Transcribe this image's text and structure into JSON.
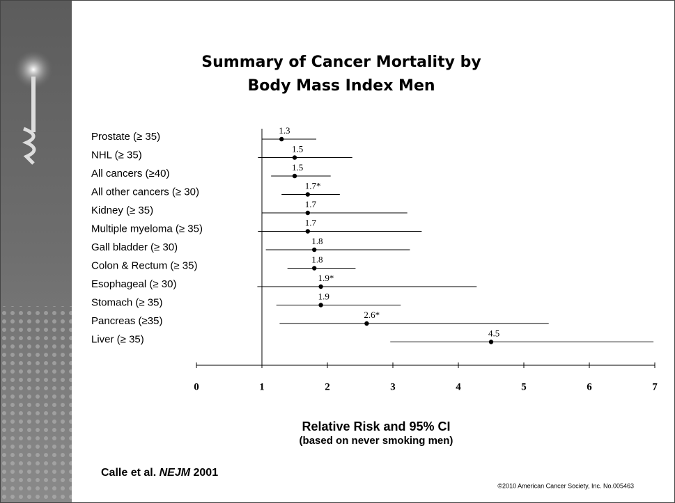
{
  "chart_data": {
    "type": "forest",
    "title": [
      "Summary of Cancer Mortality by",
      "Body Mass Index Men"
    ],
    "categories": [
      "Prostate  (≥ 35)",
      "NHL  (≥ 35)",
      "All cancers (≥40)",
      "All other cancers (≥ 30)",
      "Kidney (≥ 35)",
      "Multiple myeloma (≥ 35)",
      "Gall bladder  (≥ 30)",
      "Colon & Rectum  (≥ 35)",
      "Esophageal  (≥ 30)",
      "Stomach  (≥ 35)",
      "Pancreas  (≥35)",
      "Liver  (≥ 35)"
    ],
    "values": [
      1.3,
      1.5,
      1.5,
      1.7,
      1.7,
      1.7,
      1.8,
      1.8,
      1.9,
      1.9,
      2.6,
      4.5
    ],
    "value_labels": [
      "1.3",
      "1.5",
      "1.5",
      "1.7*",
      "1.7",
      "1.7",
      "1.8",
      "1.8",
      "1.9*",
      "1.9",
      "2.6*",
      "4.5"
    ],
    "lower": [
      1.0,
      0.94,
      1.14,
      1.3,
      1.0,
      0.94,
      1.06,
      1.39,
      0.93,
      1.22,
      1.27,
      2.96
    ],
    "upper": [
      1.83,
      2.38,
      2.05,
      2.19,
      3.22,
      3.44,
      3.26,
      2.43,
      4.28,
      3.12,
      5.38,
      6.98
    ],
    "reference_line": 1,
    "xlim": [
      0,
      7
    ],
    "xticks": [
      0,
      1,
      2,
      3,
      4,
      5,
      6,
      7
    ],
    "color": "#000000",
    "xlabel": "Relative Risk and 95% CI",
    "xlabel_note": "(based on never smoking men)",
    "source": [
      "Calle et al. ",
      "NEJM",
      " 2001"
    ],
    "copyright": "©2010 American Cancer Society, Inc. No.005463"
  }
}
